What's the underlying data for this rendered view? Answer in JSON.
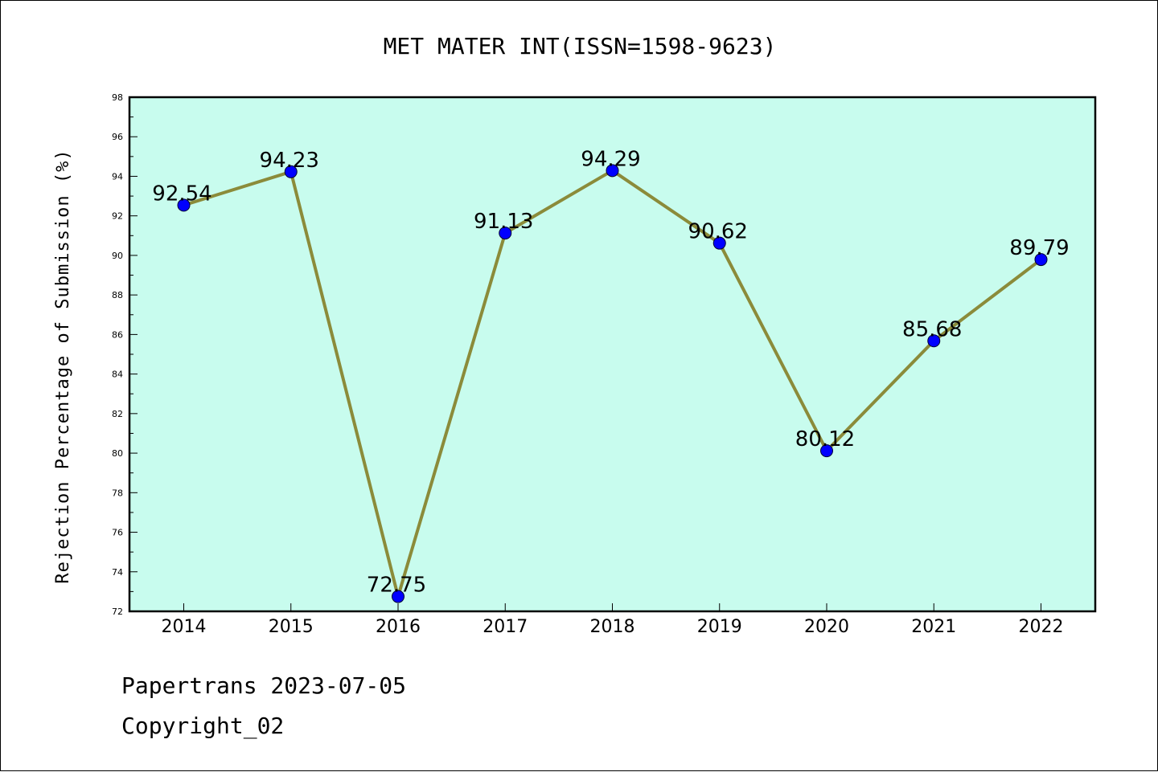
{
  "chart_data": {
    "type": "line",
    "title": "MET MATER INT(ISSN=1598-9623)",
    "xlabel": "",
    "ylabel": "Rejection Percentage of Submission (%)",
    "categories": [
      "2014",
      "2015",
      "2016",
      "2017",
      "2018",
      "2019",
      "2020",
      "2021",
      "2022"
    ],
    "series": [
      {
        "values": [
          92.54,
          94.23,
          72.75,
          91.13,
          94.29,
          90.62,
          80.12,
          85.68,
          89.79
        ]
      }
    ],
    "data_labels": [
      "92.54",
      "94.23",
      "72.75",
      "91.13",
      "94.29",
      "90.62",
      "80.12",
      "85.68",
      "89.79"
    ],
    "ylim": [
      72,
      98
    ],
    "yticks": [
      "72",
      "74",
      "76",
      "78",
      "80",
      "82",
      "84",
      "86",
      "88",
      "90",
      "92",
      "94",
      "96",
      "98"
    ],
    "grid": false,
    "legend": "none",
    "colors": {
      "plot_background": "#c8fcee",
      "line": "#8b8b3a",
      "marker": "#0000ff"
    }
  },
  "footer": {
    "date_line": "Papertrans 2023-07-05",
    "copyright": "Copyright_02"
  }
}
